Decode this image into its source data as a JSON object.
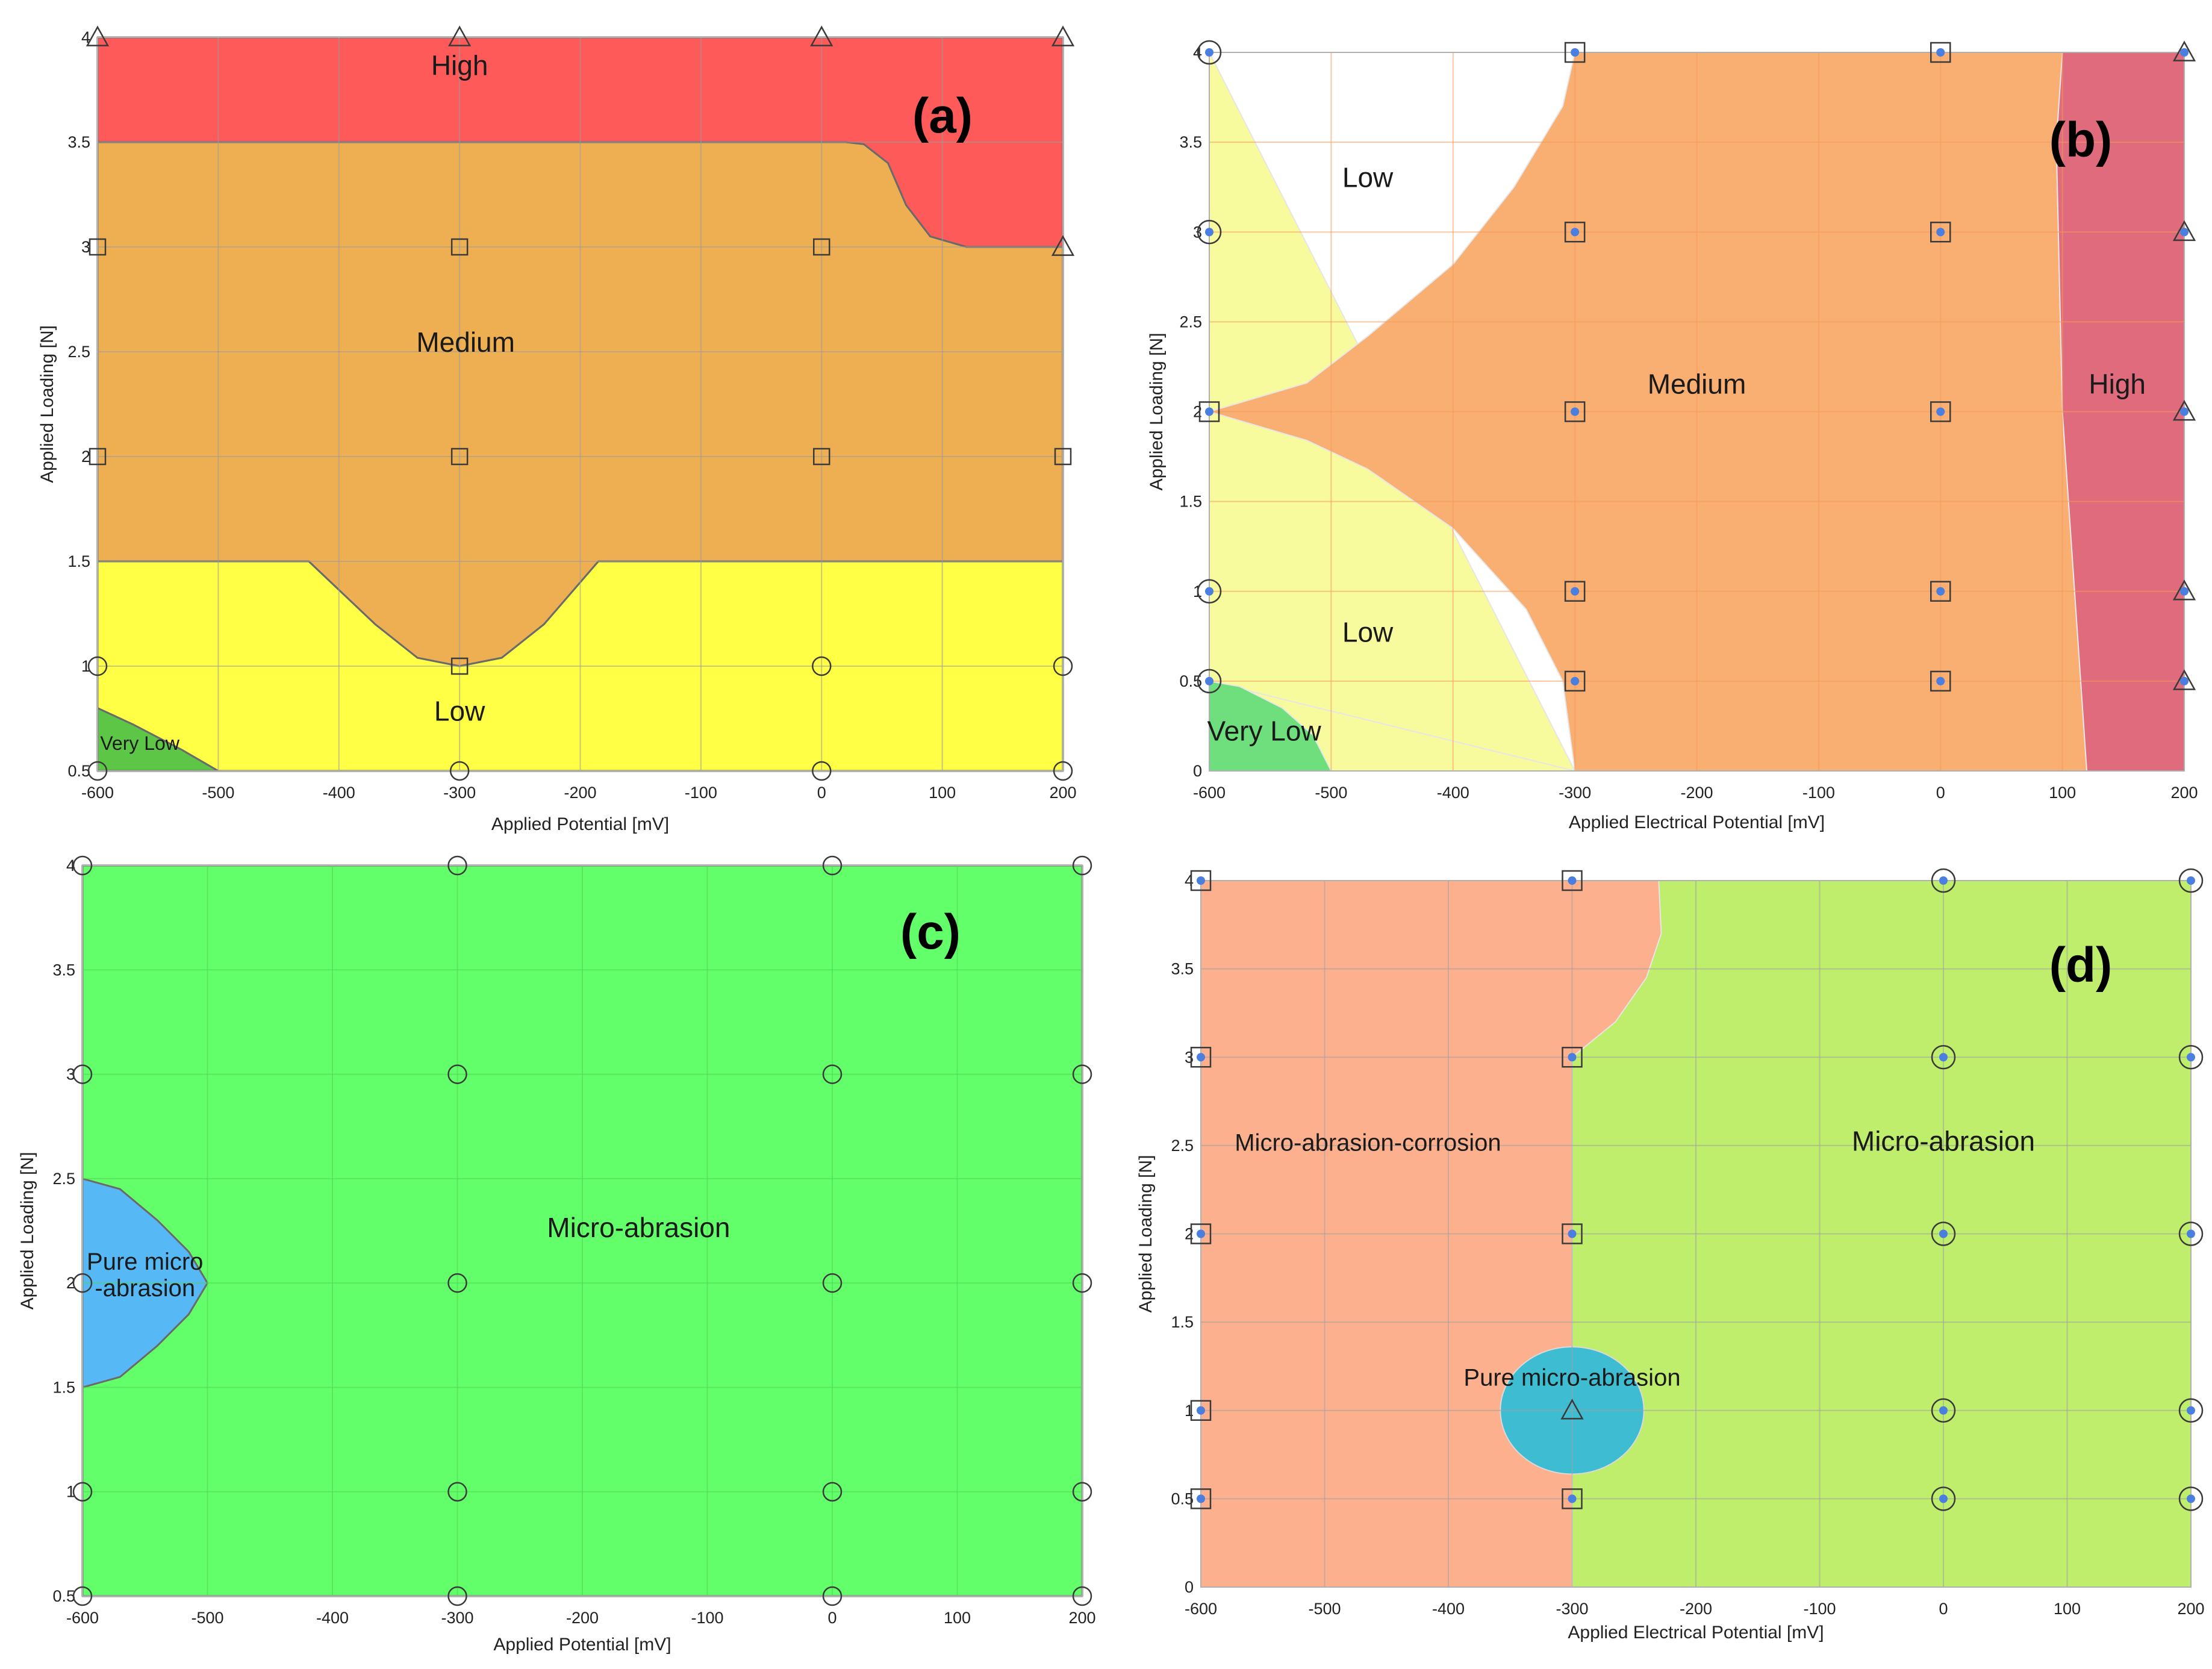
{
  "figure": {
    "background": "#ffffff"
  },
  "chart_data": [
    {
      "id": "a",
      "panel_label": "(a)",
      "type": "area",
      "title": "",
      "xlabel": "Applied Potential [mV]",
      "ylabel": "Applied Loading [N]",
      "xlim": [
        -600,
        200
      ],
      "ylim": [
        0.5,
        4
      ],
      "xticks": [
        -600,
        -500,
        -400,
        -300,
        -200,
        -100,
        0,
        100,
        200
      ],
      "yticks": [
        0.5,
        1,
        1.5,
        2,
        2.5,
        3,
        3.5,
        4
      ],
      "ytick_labels": [
        "0.5",
        "1",
        "1.5",
        "2",
        "2.5",
        "3",
        "3.5",
        "4"
      ],
      "grid": true,
      "grid_color": "#9a9a9a",
      "regions": [
        {
          "name": "High",
          "color": "#ff5a5a",
          "boundary": [
            [
              -600,
              4
            ],
            [
              200,
              4
            ],
            [
              200,
              3
            ],
            [
              120,
              3
            ],
            [
              90,
              3.05
            ],
            [
              70,
              3.2
            ],
            [
              55,
              3.4
            ],
            [
              35,
              3.49
            ],
            [
              20,
              3.5
            ],
            [
              -600,
              3.5
            ]
          ],
          "label_at": [
            -300,
            3.82
          ]
        },
        {
          "name": "Medium",
          "color": "#eeaf52",
          "boundary": [
            [
              -600,
              3.5
            ],
            [
              20,
              3.5
            ],
            [
              35,
              3.49
            ],
            [
              55,
              3.4
            ],
            [
              70,
              3.2
            ],
            [
              90,
              3.05
            ],
            [
              120,
              3
            ],
            [
              200,
              3
            ],
            [
              200,
              1.5
            ],
            [
              -185,
              1.5
            ],
            [
              -230,
              1.2
            ],
            [
              -265,
              1.04
            ],
            [
              -300,
              1
            ],
            [
              -335,
              1.04
            ],
            [
              -370,
              1.2
            ],
            [
              -425,
              1.5
            ],
            [
              -600,
              1.5
            ]
          ],
          "label_at": [
            -295,
            2.5
          ]
        },
        {
          "name": "Low",
          "color": "#ffff45",
          "boundary": [
            [
              -600,
              1.5
            ],
            [
              -425,
              1.5
            ],
            [
              -370,
              1.2
            ],
            [
              -335,
              1.04
            ],
            [
              -300,
              1
            ],
            [
              -265,
              1.04
            ],
            [
              -230,
              1.2
            ],
            [
              -185,
              1.5
            ],
            [
              200,
              1.5
            ],
            [
              200,
              0.5
            ],
            [
              -500,
              0.5
            ],
            [
              -530,
              0.6
            ],
            [
              -570,
              0.72
            ],
            [
              -600,
              0.8
            ]
          ],
          "label_at": [
            -300,
            0.74
          ]
        },
        {
          "name": "Very Low",
          "color": "#5dc647",
          "boundary": [
            [
              -600,
              0.8
            ],
            [
              -570,
              0.72
            ],
            [
              -530,
              0.6
            ],
            [
              -500,
              0.5
            ],
            [
              -600,
              0.5
            ]
          ],
          "label_at": [
            -565,
            0.6
          ]
        }
      ],
      "markers": [
        {
          "shape": "triangle",
          "points": [
            [
              -600,
              4
            ],
            [
              -300,
              4
            ],
            [
              0,
              4
            ],
            [
              200,
              4
            ],
            [
              200,
              3
            ]
          ]
        },
        {
          "shape": "square",
          "points": [
            [
              -600,
              3
            ],
            [
              -300,
              3
            ],
            [
              0,
              3
            ],
            [
              -600,
              2
            ],
            [
              -300,
              2
            ],
            [
              0,
              2
            ],
            [
              200,
              2
            ],
            [
              -300,
              1
            ]
          ]
        },
        {
          "shape": "circle",
          "points": [
            [
              -600,
              1
            ],
            [
              0,
              1
            ],
            [
              200,
              1
            ],
            [
              -600,
              0.5
            ],
            [
              -300,
              0.5
            ],
            [
              0,
              0.5
            ],
            [
              200,
              0.5
            ]
          ]
        }
      ]
    },
    {
      "id": "b",
      "panel_label": "(b)",
      "type": "area",
      "title": "",
      "xlabel": "Applied Electrical Potential [mV]",
      "ylabel": "Applied Loading [N]",
      "xlim": [
        -600,
        200
      ],
      "ylim": [
        0,
        4
      ],
      "xticks": [
        -600,
        -500,
        -400,
        -300,
        -200,
        -100,
        0,
        100,
        200
      ],
      "yticks": [
        0,
        0.5,
        1,
        1.5,
        2,
        2.5,
        3,
        3.5,
        4
      ],
      "ytick_labels": [
        "0",
        "0.5",
        "1",
        "1.5",
        "2",
        "2.5",
        "3",
        "3.5",
        "4"
      ],
      "grid": true,
      "grid_color": "#f49a59",
      "regions": [
        {
          "name": "Low",
          "color": "#f8fa9e",
          "boundary": [
            [
              -600,
              0
            ],
            [
              -300,
              0
            ],
            [
              -600,
              4
            ]
          ],
          "label_at": [
            -470,
            3.25
          ]
        },
        {
          "name": "Medium",
          "color": "#f9ae72",
          "boundary": [
            [
              -300,
              4
            ],
            [
              100,
              4
            ],
            [
              95,
              3.5
            ],
            [
              100,
              2
            ],
            [
              120,
              0
            ],
            [
              -300,
              0
            ],
            [
              -310,
              0.5
            ],
            [
              -340,
              0.9
            ],
            [
              -400,
              1.35
            ],
            [
              -470,
              1.68
            ],
            [
              -520,
              1.84
            ],
            [
              -600,
              2
            ],
            [
              -520,
              2.16
            ],
            [
              -470,
              2.42
            ],
            [
              -400,
              2.82
            ],
            [
              -350,
              3.25
            ],
            [
              -310,
              3.7
            ]
          ],
          "label_at": [
            -200,
            2.1
          ]
        },
        {
          "name": "Low",
          "color": "#f8fa9e",
          "boundary": [
            [
              -600,
              0.5
            ],
            [
              -600,
              0
            ],
            [
              -300,
              0
            ]
          ],
          "label_at": [
            -470,
            0.72
          ]
        },
        {
          "name": "High",
          "color": "#df6b7c",
          "boundary": [
            [
              100,
              4
            ],
            [
              200,
              4
            ],
            [
              200,
              0
            ],
            [
              120,
              0
            ],
            [
              100,
              2
            ],
            [
              95,
              3.5
            ]
          ],
          "label_at": [
            145,
            2.1
          ]
        },
        {
          "name": "Very Low",
          "color": "#6edf7c",
          "boundary": [
            [
              -600,
              0.5
            ],
            [
              -575,
              0.47
            ],
            [
              -540,
              0.35
            ],
            [
              -515,
              0.2
            ],
            [
              -500,
              0
            ],
            [
              -600,
              0
            ]
          ],
          "label_at": [
            -555,
            0.17
          ]
        }
      ],
      "markers": [
        {
          "shape": "circle-dot",
          "points": [
            [
              -600,
              4
            ],
            [
              -600,
              3
            ],
            [
              -600,
              1
            ],
            [
              -600,
              0.5
            ]
          ]
        },
        {
          "shape": "square-dot",
          "points": [
            [
              -600,
              2
            ],
            [
              -300,
              4
            ],
            [
              -300,
              3
            ],
            [
              -300,
              2
            ],
            [
              -300,
              1
            ],
            [
              -300,
              0.5
            ],
            [
              0,
              4
            ],
            [
              0,
              3
            ],
            [
              0,
              2
            ],
            [
              0,
              1
            ],
            [
              0,
              0.5
            ]
          ]
        },
        {
          "shape": "triangle-dot",
          "points": [
            [
              200,
              4
            ],
            [
              200,
              3
            ],
            [
              200,
              2
            ],
            [
              200,
              1
            ],
            [
              200,
              0.5
            ]
          ]
        }
      ]
    },
    {
      "id": "c",
      "panel_label": "(c)",
      "type": "area",
      "title": "",
      "xlabel": "Applied Potential [mV]",
      "ylabel": "Applied Loading [N]",
      "xlim": [
        -600,
        200
      ],
      "ylim": [
        0.5,
        4
      ],
      "xticks": [
        -600,
        -500,
        -400,
        -300,
        -200,
        -100,
        0,
        100,
        200
      ],
      "yticks": [
        0.5,
        1,
        1.5,
        2,
        2.5,
        3,
        3.5,
        4
      ],
      "ytick_labels": [
        "0.5",
        "1",
        "1.5",
        "2",
        "2.5",
        "3",
        "3.5",
        "4"
      ],
      "grid": true,
      "grid_color": "#52d652",
      "regions": [
        {
          "name": "Micro-abrasion",
          "color": "#63ff6a",
          "boundary": [
            [
              -600,
              4
            ],
            [
              200,
              4
            ],
            [
              200,
              0.5
            ],
            [
              -600,
              0.5
            ]
          ],
          "label_at": [
            -155,
            2.22
          ]
        },
        {
          "name": "Pure micro\n-abrasion",
          "color": "#56b8f4",
          "boundary": [
            [
              -600,
              2.5
            ],
            [
              -570,
              2.45
            ],
            [
              -540,
              2.3
            ],
            [
              -515,
              2.15
            ],
            [
              -500,
              2
            ],
            [
              -515,
              1.85
            ],
            [
              -540,
              1.7
            ],
            [
              -570,
              1.55
            ],
            [
              -600,
              1.5
            ]
          ],
          "label_at": [
            -550,
            2
          ]
        }
      ],
      "markers": [
        {
          "shape": "circle",
          "points": [
            [
              -600,
              4
            ],
            [
              -300,
              4
            ],
            [
              0,
              4
            ],
            [
              200,
              4
            ],
            [
              -600,
              3
            ],
            [
              -300,
              3
            ],
            [
              0,
              3
            ],
            [
              200,
              3
            ],
            [
              -600,
              2
            ],
            [
              -300,
              2
            ],
            [
              0,
              2
            ],
            [
              200,
              2
            ],
            [
              -600,
              1
            ],
            [
              -300,
              1
            ],
            [
              0,
              1
            ],
            [
              200,
              1
            ],
            [
              -600,
              0.5
            ],
            [
              -300,
              0.5
            ],
            [
              0,
              0.5
            ],
            [
              200,
              0.5
            ]
          ]
        }
      ]
    },
    {
      "id": "d",
      "panel_label": "(d)",
      "type": "area",
      "title": "",
      "xlabel": "Applied Electrical Potential [mV]",
      "ylabel": "Applied Loading [N]",
      "xlim": [
        -600,
        200
      ],
      "ylim": [
        0,
        4
      ],
      "xticks": [
        -600,
        -500,
        -400,
        -300,
        -200,
        -100,
        0,
        100,
        200
      ],
      "yticks": [
        0,
        0.5,
        1,
        1.5,
        2,
        2.5,
        3,
        3.5,
        4
      ],
      "ytick_labels": [
        "0",
        "0.5",
        "1",
        "1.5",
        "2",
        "2.5",
        "3",
        "3.5",
        "4"
      ],
      "grid": true,
      "grid_color": "#a0a0a0",
      "regions": [
        {
          "name": "Micro-abrasion",
          "color": "#bfee6c",
          "boundary": [
            [
              -600,
              4
            ],
            [
              200,
              4
            ],
            [
              200,
              0
            ],
            [
              -600,
              0
            ]
          ],
          "label_at": [
            0,
            2.47
          ]
        },
        {
          "name": "Micro-abrasion-corrosion",
          "color": "#fdb08d",
          "boundary": [
            [
              -600,
              4
            ],
            [
              -230,
              4
            ],
            [
              -228,
              3.7
            ],
            [
              -240,
              3.45
            ],
            [
              -265,
              3.2
            ],
            [
              -300,
              3
            ],
            [
              -300,
              0
            ],
            [
              -600,
              0
            ]
          ],
          "label_at": [
            -465,
            2.47
          ]
        },
        {
          "name": "Pure micro-abrasion",
          "color": "#3ebdd2",
          "ellipse": {
            "cx": -300,
            "cy": 1,
            "rx": 58,
            "ry": 0.36
          },
          "label_at": [
            -300,
            1.14
          ]
        }
      ],
      "markers": [
        {
          "shape": "square-dot",
          "points": [
            [
              -600,
              4
            ],
            [
              -600,
              3
            ],
            [
              -600,
              2
            ],
            [
              -600,
              1
            ],
            [
              -600,
              0.5
            ],
            [
              -300,
              4
            ],
            [
              -300,
              3
            ],
            [
              -300,
              2
            ],
            [
              -300,
              0.5
            ]
          ]
        },
        {
          "shape": "circle-dot",
          "points": [
            [
              0,
              4
            ],
            [
              0,
              3
            ],
            [
              0,
              2
            ],
            [
              0,
              1
            ],
            [
              0,
              0.5
            ],
            [
              200,
              4
            ],
            [
              200,
              3
            ],
            [
              200,
              2
            ],
            [
              200,
              1
            ],
            [
              200,
              0.5
            ]
          ]
        },
        {
          "shape": "triangle",
          "points": [
            [
              -300,
              1
            ]
          ]
        }
      ]
    }
  ]
}
